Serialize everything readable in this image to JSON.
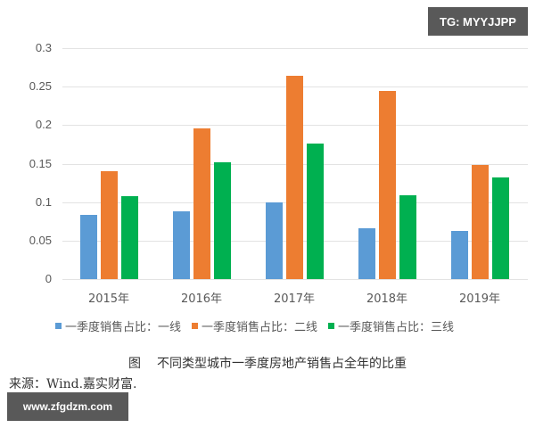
{
  "watermark_top": "TG: MYYJJPP",
  "watermark_bottom": "www.zfgdzm.com",
  "caption": {
    "figure_label": "图",
    "title": "不同类型城市一季度房地产销售占全年的比重"
  },
  "source": "来源：Wind.嘉实财富.",
  "colors": {
    "tier1": "#5b9bd5",
    "tier2": "#ed7d31",
    "tier3": "#00b050",
    "badge": "#595959"
  },
  "chart_data": {
    "type": "bar",
    "title": "不同类型城市一季度房地产销售占全年的比重",
    "xlabel": "",
    "ylabel": "",
    "categories": [
      "2015年",
      "2016年",
      "2017年",
      "2018年",
      "2019年"
    ],
    "series": [
      {
        "name": "一季度销售占比：一线",
        "color": "#5b9bd5",
        "values": [
          0.083,
          0.088,
          0.1,
          0.066,
          0.062
        ]
      },
      {
        "name": "一季度销售占比：二线",
        "color": "#ed7d31",
        "values": [
          0.14,
          0.196,
          0.264,
          0.244,
          0.148
        ]
      },
      {
        "name": "一季度销售占比：三线",
        "color": "#00b050",
        "values": [
          0.108,
          0.152,
          0.176,
          0.109,
          0.132
        ]
      }
    ],
    "ylim": [
      0,
      0.3
    ],
    "yticks": [
      "0",
      "0.05",
      "0.1",
      "0.15",
      "0.2",
      "0.25",
      "0.3"
    ],
    "grid": true,
    "legend_position": "bottom"
  }
}
